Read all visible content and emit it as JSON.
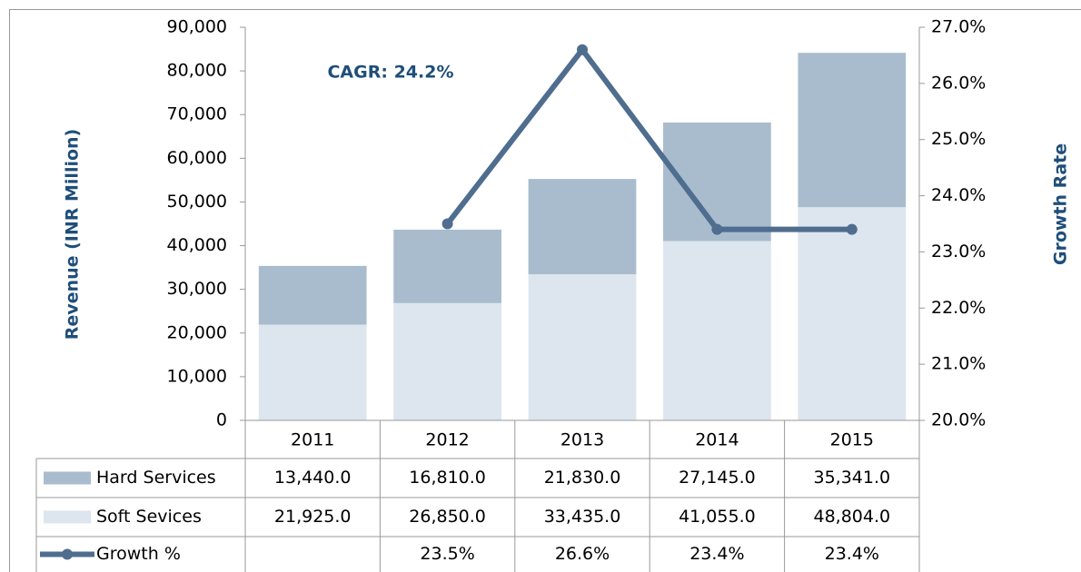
{
  "chart_data": {
    "type": "bar",
    "annotation": "CAGR: 24.2%",
    "ylabel": "Revenue (INR Million)",
    "y2label": "Growth Rate",
    "categories": [
      "2011",
      "2012",
      "2013",
      "2014",
      "2015"
    ],
    "series": [
      {
        "name": "Hard Services",
        "type": "bar",
        "color": "#a9bccd",
        "values": [
          13440,
          16810,
          21830,
          27145,
          35341
        ],
        "value_labels": [
          "13,440.0",
          "16,810.0",
          "21,830.0",
          "27,145.0",
          "35,341.0"
        ]
      },
      {
        "name": "Soft Sevices",
        "type": "bar",
        "color": "#dde5ee",
        "values": [
          21925,
          26850,
          33435,
          41055,
          48804
        ],
        "value_labels": [
          "21,925.0",
          "26,850.0",
          "33,435.0",
          "41,055.0",
          "48,804.0"
        ]
      },
      {
        "name": "Growth %",
        "type": "line",
        "axis": "y2",
        "color": "#4f6d8f",
        "values": [
          null,
          23.5,
          26.6,
          23.4,
          23.4
        ],
        "value_labels": [
          null,
          "23.5%",
          "26.6%",
          "23.4%",
          "23.4%"
        ]
      }
    ],
    "ylim": [
      0,
      90000
    ],
    "yticks": [
      0,
      {
        "value": 10000,
        "label": "10,000"
      },
      {
        "value": 20000,
        "label": "20,000"
      },
      {
        "value": 30000,
        "label": "30,000"
      },
      {
        "value": 40000,
        "label": "40,000"
      },
      {
        "value": 50000,
        "label": "50,000"
      },
      {
        "value": 60000,
        "label": "60,000"
      },
      {
        "value": 70000,
        "label": "70,000"
      },
      {
        "value": 80000,
        "label": "80,000"
      },
      {
        "value": 90000,
        "label": "90,000"
      }
    ],
    "y2lim": [
      20,
      27
    ],
    "y2ticks": [
      {
        "value": 20,
        "label": "20.0%"
      },
      {
        "value": 21,
        "label": "21.0%"
      },
      {
        "value": 22,
        "label": "22.0%"
      },
      {
        "value": 23,
        "label": "23.0%"
      },
      {
        "value": 24,
        "label": "24.0%"
      },
      {
        "value": 25,
        "label": "25.0%"
      },
      {
        "value": 26,
        "label": "26.0%"
      },
      {
        "value": 27,
        "label": "27.0%"
      }
    ]
  }
}
